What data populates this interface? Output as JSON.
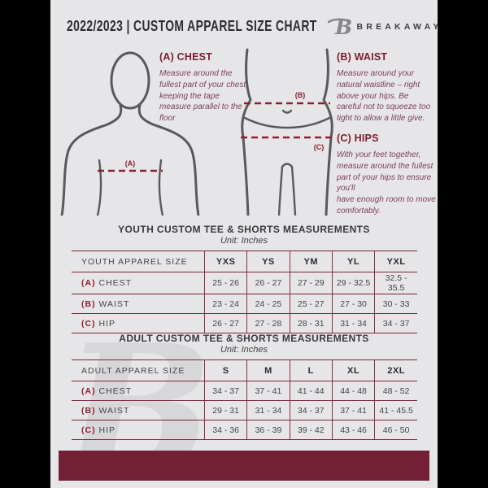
{
  "header": {
    "title": "2022/2023  |  CUSTOM APPAREL SIZE CHART"
  },
  "brand": {
    "name": "BREAKAWAY",
    "logo_letter": "B"
  },
  "guide": {
    "labels": {
      "a": "(A)",
      "b": "(B)",
      "c": "(C)"
    },
    "chest": {
      "heading": "(A) CHEST",
      "body": "Measure around the fullest part of your chest, keeping the tape measure parallel to the floor"
    },
    "waist": {
      "heading": "(B) WAIST",
      "body": "Measure around your natural waistline – right above your hips. Be careful not to squeeze too tight to allow a little give."
    },
    "hips": {
      "heading": "(C) HIPS",
      "body": "With your feet together, measure around the fullest part of your hips to ensure you'll\nhave enough room to move comfortably."
    }
  },
  "youth": {
    "title": "YOUTH CUSTOM TEE & SHORTS MEASUREMENTS",
    "unit": "Unit: Inches",
    "table": {
      "header": [
        "YOUTH APPAREL SIZE",
        "YXS",
        "YS",
        "YM",
        "YL",
        "YXL"
      ],
      "rows": [
        {
          "prefix": "(A)",
          "label": "CHEST",
          "values": [
            "25 - 26",
            "26 - 27",
            "27 - 29",
            "29 - 32.5",
            "32.5 - 35.5"
          ]
        },
        {
          "prefix": "(B)",
          "label": "WAIST",
          "values": [
            "23 - 24",
            "24 - 25",
            "25 - 27",
            "27 - 30",
            "30 - 33"
          ]
        },
        {
          "prefix": "(C)",
          "label": "HIP",
          "values": [
            "26 - 27",
            "27 - 28",
            "28 - 31",
            "31 - 34",
            "34 - 37"
          ]
        }
      ]
    }
  },
  "adult": {
    "title": "ADULT CUSTOM TEE & SHORTS MEASUREMENTS",
    "unit": "Unit: Inches",
    "table": {
      "header": [
        "ADULT APPAREL SIZE",
        "S",
        "M",
        "L",
        "XL",
        "2XL"
      ],
      "rows": [
        {
          "prefix": "(A)",
          "label": "CHEST",
          "values": [
            "34 - 37",
            "37 - 41",
            "41 - 44",
            "44 - 48",
            "48 - 52"
          ]
        },
        {
          "prefix": "(B)",
          "label": "WAIST",
          "values": [
            "29 - 31",
            "31 - 34",
            "34 - 37",
            "37 - 41",
            "41 - 45.5"
          ]
        },
        {
          "prefix": "(C)",
          "label": "HIP",
          "values": [
            "34 - 36",
            "36 - 39",
            "39 - 42",
            "43 - 46",
            "46 - 50"
          ]
        }
      ]
    }
  },
  "colors": {
    "maroon_footer": "#731f36",
    "maroon_accent": "#8e1f33",
    "table_rule": "#7e2239",
    "page_bg": "#e6e6e8",
    "outline_gray": "#58595b"
  }
}
